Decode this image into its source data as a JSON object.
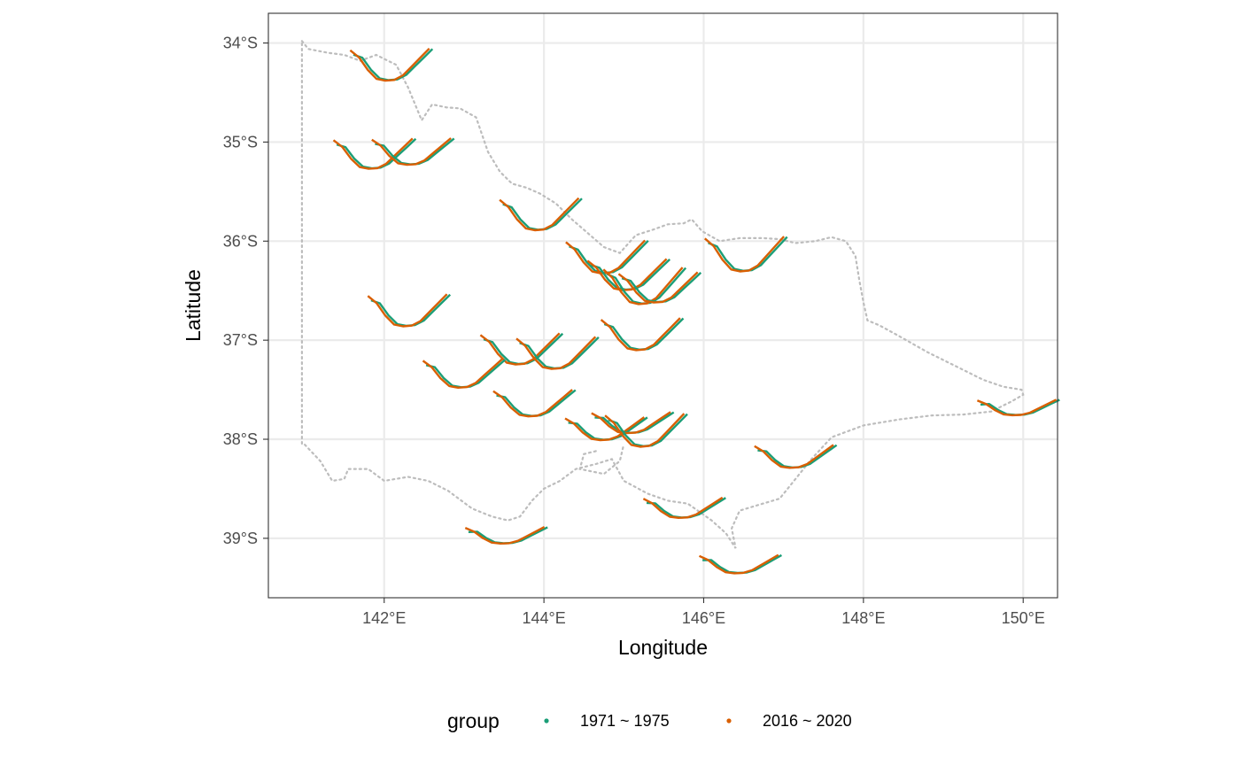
{
  "chart_data": {
    "type": "line",
    "subtype": "glyph-map",
    "xlabel": "Longitude",
    "ylabel": "Latitude",
    "xlim": [
      140.55,
      150.43
    ],
    "ylim": [
      -39.6,
      -33.7
    ],
    "x_ticks": [
      {
        "value": 142,
        "label": "142°E"
      },
      {
        "value": 144,
        "label": "144°E"
      },
      {
        "value": 146,
        "label": "146°E"
      },
      {
        "value": 148,
        "label": "148°E"
      },
      {
        "value": 150,
        "label": "150°E"
      }
    ],
    "y_ticks": [
      {
        "value": -34,
        "label": "34°S"
      },
      {
        "value": -35,
        "label": "35°S"
      },
      {
        "value": -36,
        "label": "36°S"
      },
      {
        "value": -37,
        "label": "37°S"
      },
      {
        "value": -38,
        "label": "38°S"
      },
      {
        "value": -39,
        "label": "39°S"
      }
    ],
    "grid": true,
    "legend": {
      "title": "group",
      "position": "bottom",
      "entries": [
        {
          "label": "1971 ~ 1975",
          "color": "#1b9e77"
        },
        {
          "label": "2016 ~ 2020",
          "color": "#d95f02"
        }
      ]
    },
    "glyph_shape": [
      0.15,
      0.35,
      0.7,
      0.95,
      1.0,
      0.98,
      0.85,
      0.6,
      0.35,
      0.1
    ],
    "glyph_width_deg": 0.99,
    "series_style": [
      {
        "name": "1971 ~ 1975",
        "color": "#1b9e77",
        "depth_factor": 1.0,
        "dx": 0.03,
        "top_drop": 0.04
      },
      {
        "name": "2016 ~ 2020",
        "color": "#d95f02",
        "depth_factor": 1.03,
        "dx": -0.01,
        "top_drop": 0.0
      }
    ],
    "stations": [
      {
        "lon": 142.08,
        "lat": -34.2,
        "depth": 0.35
      },
      {
        "lon": 141.87,
        "lat": -35.1,
        "depth": 0.33
      },
      {
        "lon": 142.35,
        "lat": -35.08,
        "depth": 0.29
      },
      {
        "lon": 143.95,
        "lat": -35.71,
        "depth": 0.35
      },
      {
        "lon": 144.78,
        "lat": -36.14,
        "depth": 0.36
      },
      {
        "lon": 145.05,
        "lat": -36.32,
        "depth": 0.34
      },
      {
        "lon": 145.25,
        "lat": -36.43,
        "depth": 0.4
      },
      {
        "lon": 145.44,
        "lat": -36.45,
        "depth": 0.33
      },
      {
        "lon": 146.52,
        "lat": -36.11,
        "depth": 0.38
      },
      {
        "lon": 142.3,
        "lat": -36.68,
        "depth": 0.35
      },
      {
        "lon": 143.71,
        "lat": -37.07,
        "depth": 0.34
      },
      {
        "lon": 144.16,
        "lat": -37.11,
        "depth": 0.35
      },
      {
        "lon": 145.22,
        "lat": -36.92,
        "depth": 0.35
      },
      {
        "lon": 142.99,
        "lat": -37.32,
        "depth": 0.31
      },
      {
        "lon": 143.87,
        "lat": -37.62,
        "depth": 0.29
      },
      {
        "lon": 144.77,
        "lat": -37.88,
        "depth": 0.25
      },
      {
        "lon": 145.1,
        "lat": -37.82,
        "depth": 0.23
      },
      {
        "lon": 145.27,
        "lat": -37.89,
        "depth": 0.36
      },
      {
        "lon": 147.14,
        "lat": -38.16,
        "depth": 0.25
      },
      {
        "lon": 149.93,
        "lat": -37.67,
        "depth": 0.17
      },
      {
        "lon": 143.52,
        "lat": -38.96,
        "depth": 0.18
      },
      {
        "lon": 145.75,
        "lat": -38.68,
        "depth": 0.22
      },
      {
        "lon": 146.45,
        "lat": -39.25,
        "depth": 0.2
      }
    ],
    "state_outline": [
      [
        140.97,
        -33.98
      ],
      [
        141.05,
        -34.06
      ],
      [
        141.3,
        -34.1
      ],
      [
        141.5,
        -34.12
      ],
      [
        141.7,
        -34.18
      ],
      [
        141.9,
        -34.12
      ],
      [
        142.15,
        -34.22
      ],
      [
        142.3,
        -34.45
      ],
      [
        142.47,
        -34.78
      ],
      [
        142.6,
        -34.62
      ],
      [
        142.78,
        -34.65
      ],
      [
        142.95,
        -34.66
      ],
      [
        143.15,
        -34.75
      ],
      [
        143.3,
        -35.1
      ],
      [
        143.45,
        -35.3
      ],
      [
        143.6,
        -35.42
      ],
      [
        143.78,
        -35.46
      ],
      [
        143.95,
        -35.52
      ],
      [
        144.15,
        -35.62
      ],
      [
        144.35,
        -35.78
      ],
      [
        144.55,
        -35.92
      ],
      [
        144.75,
        -36.06
      ],
      [
        144.95,
        -36.12
      ],
      [
        145.15,
        -35.94
      ],
      [
        145.38,
        -35.88
      ],
      [
        145.55,
        -35.83
      ],
      [
        145.75,
        -35.82
      ],
      [
        145.85,
        -35.78
      ],
      [
        145.98,
        -35.9
      ],
      [
        146.2,
        -36.0
      ],
      [
        146.45,
        -35.97
      ],
      [
        146.75,
        -35.97
      ],
      [
        146.95,
        -35.98
      ],
      [
        147.15,
        -36.02
      ],
      [
        147.4,
        -36.0
      ],
      [
        147.6,
        -35.96
      ],
      [
        147.78,
        -36.0
      ],
      [
        147.9,
        -36.15
      ],
      [
        147.95,
        -36.4
      ],
      [
        148.0,
        -36.62
      ],
      [
        148.05,
        -36.8
      ],
      [
        148.2,
        -36.85
      ],
      [
        148.45,
        -36.96
      ],
      [
        148.8,
        -37.12
      ],
      [
        149.2,
        -37.28
      ],
      [
        149.5,
        -37.4
      ],
      [
        149.75,
        -37.47
      ],
      [
        149.98,
        -37.5
      ],
      [
        150.0,
        -37.55
      ],
      [
        149.85,
        -37.62
      ],
      [
        149.6,
        -37.72
      ],
      [
        149.25,
        -37.75
      ],
      [
        148.85,
        -37.76
      ],
      [
        148.45,
        -37.8
      ],
      [
        148.0,
        -37.86
      ],
      [
        147.6,
        -37.98
      ],
      [
        147.35,
        -38.2
      ],
      [
        147.15,
        -38.4
      ],
      [
        146.95,
        -38.6
      ],
      [
        146.7,
        -38.66
      ],
      [
        146.45,
        -38.72
      ],
      [
        146.35,
        -38.9
      ],
      [
        146.4,
        -39.1
      ],
      [
        146.28,
        -38.95
      ],
      [
        146.1,
        -38.82
      ],
      [
        145.8,
        -38.65
      ],
      [
        145.55,
        -38.62
      ],
      [
        145.3,
        -38.55
      ],
      [
        145.0,
        -38.42
      ],
      [
        144.85,
        -38.2
      ],
      [
        144.65,
        -38.25
      ],
      [
        144.4,
        -38.3
      ],
      [
        144.2,
        -38.42
      ],
      [
        144.0,
        -38.5
      ],
      [
        143.85,
        -38.62
      ],
      [
        143.7,
        -38.78
      ],
      [
        143.55,
        -38.82
      ],
      [
        143.35,
        -38.78
      ],
      [
        143.1,
        -38.7
      ],
      [
        142.8,
        -38.52
      ],
      [
        142.55,
        -38.42
      ],
      [
        142.3,
        -38.38
      ],
      [
        142.0,
        -38.42
      ],
      [
        141.8,
        -38.3
      ],
      [
        141.55,
        -38.3
      ],
      [
        141.5,
        -38.4
      ],
      [
        141.35,
        -38.42
      ],
      [
        141.2,
        -38.22
      ],
      [
        141.0,
        -38.05
      ],
      [
        140.97,
        -38.05
      ],
      [
        140.97,
        -33.98
      ]
    ],
    "bay_outline": [
      [
        144.65,
        -38.12
      ],
      [
        144.5,
        -38.15
      ],
      [
        144.45,
        -38.3
      ],
      [
        144.75,
        -38.35
      ],
      [
        144.95,
        -38.22
      ],
      [
        145.0,
        -38.05
      ]
    ]
  }
}
